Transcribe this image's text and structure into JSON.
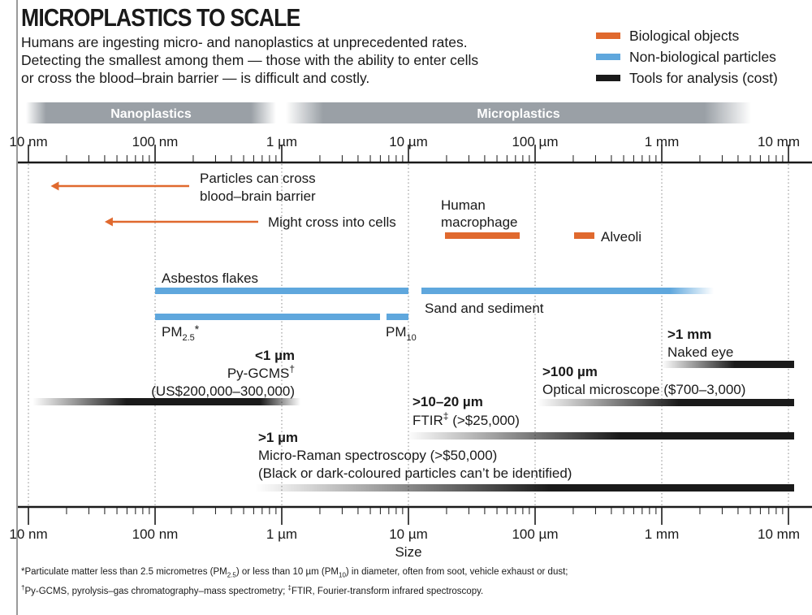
{
  "title": "MICROPLASTICS TO SCALE",
  "subtitle": "Humans are ingesting micro- and nanoplastics at unprecedented rates. Detecting the smallest among them — those with the ability to enter cells or cross the blood–brain barrier — is difficult and costly.",
  "legend": [
    {
      "label": "Biological objects",
      "color": "#e0692e"
    },
    {
      "label": "Non-biological particles",
      "color": "#5fa7dd"
    },
    {
      "label": "Tools for analysis (cost)",
      "color": "#1a1a1a"
    }
  ],
  "footnote": {
    "line1_a": "*Particulate matter less than 2.5 micrometres (PM",
    "line1_sub1": "2.5",
    "line1_b": ") or less than 10 µm (PM",
    "line1_sub2": "10",
    "line1_c": ") in diameter, often from soot, vehicle exhaust or dust;",
    "line2_mark1": "†",
    "line2_a": "Py-GCMS, pyrolysis–gas chromatography–mass spectrometry; ",
    "line2_mark2": "‡",
    "line2_b": "FTIR, Fourier-transform infrared spectroscopy."
  },
  "chart_data": {
    "type": "range",
    "x_scale": "log",
    "xlabel": "Size",
    "xlim_nm": [
      10,
      10000000
    ],
    "ticks": [
      {
        "value_nm": 10,
        "label": "10 nm"
      },
      {
        "value_nm": 100,
        "label": "100 nm"
      },
      {
        "value_nm": 1000,
        "label": "1 µm"
      },
      {
        "value_nm": 10000,
        "label": "10 µm"
      },
      {
        "value_nm": 100000,
        "label": "100 µm"
      },
      {
        "value_nm": 1000000,
        "label": "1 mm"
      },
      {
        "value_nm": 10000000,
        "label": "10 mm"
      }
    ],
    "size_classes": [
      {
        "label": "Nanoplastics",
        "from_nm": 10,
        "to_nm": 1000
      },
      {
        "label": "Microplastics",
        "from_nm": 1000,
        "to_nm": 5000000
      }
    ],
    "arrows": [
      {
        "label_lines": [
          "Particles can cross",
          "blood–brain barrier"
        ],
        "from_nm": 170,
        "to_nm": 15,
        "color": "#e0692e"
      },
      {
        "label_lines": [
          "Might cross into cells"
        ],
        "from_nm": 1000,
        "to_nm": 40,
        "color": "#e0692e"
      }
    ],
    "biological_objects": [
      {
        "label_lines": [
          "Human",
          "macrophage"
        ],
        "from_nm": 20000,
        "to_nm": 70000
      },
      {
        "label_lines": [
          "Alveoli"
        ],
        "from_nm": 200000,
        "to_nm": 280000
      }
    ],
    "particles": [
      {
        "label": "Asbestos flakes",
        "from_nm": 100,
        "to_nm": 10000
      },
      {
        "label": "Sand and sediment",
        "from_nm": 10000,
        "to_nm": 3000000
      },
      {
        "label": "PM",
        "label_sub": "2.5",
        "label_mark": "*",
        "from_nm": 100,
        "to_nm": 2500
      },
      {
        "label": "PM",
        "label_sub": "10",
        "from_nm": 5000,
        "to_nm": 10000
      }
    ],
    "tools": [
      {
        "threshold": "<1 µm",
        "name": "Py-GCMS",
        "mark": "†",
        "cost": "(US$200,000–300,000)",
        "from_nm": 10,
        "to_nm": 1000
      },
      {
        "threshold": ">1 mm",
        "name": "Naked eye",
        "from_nm": 1000000,
        "to_nm": 10000000
      },
      {
        "threshold": ">100 µm",
        "name": "Optical microscope ($700–3,000)",
        "from_nm": 100000,
        "to_nm": 10000000
      },
      {
        "threshold": ">10–20 µm",
        "name": "FTIR",
        "mark": "‡",
        "cost": "(>$25,000)",
        "from_nm": 10000,
        "to_nm": 10000000
      },
      {
        "threshold": ">1 µm",
        "name": "Micro-Raman spectroscopy (>$50,000)",
        "note": "(Black or dark-coloured particles can’t be identified)",
        "from_nm": 1000,
        "to_nm": 10000000
      }
    ]
  }
}
